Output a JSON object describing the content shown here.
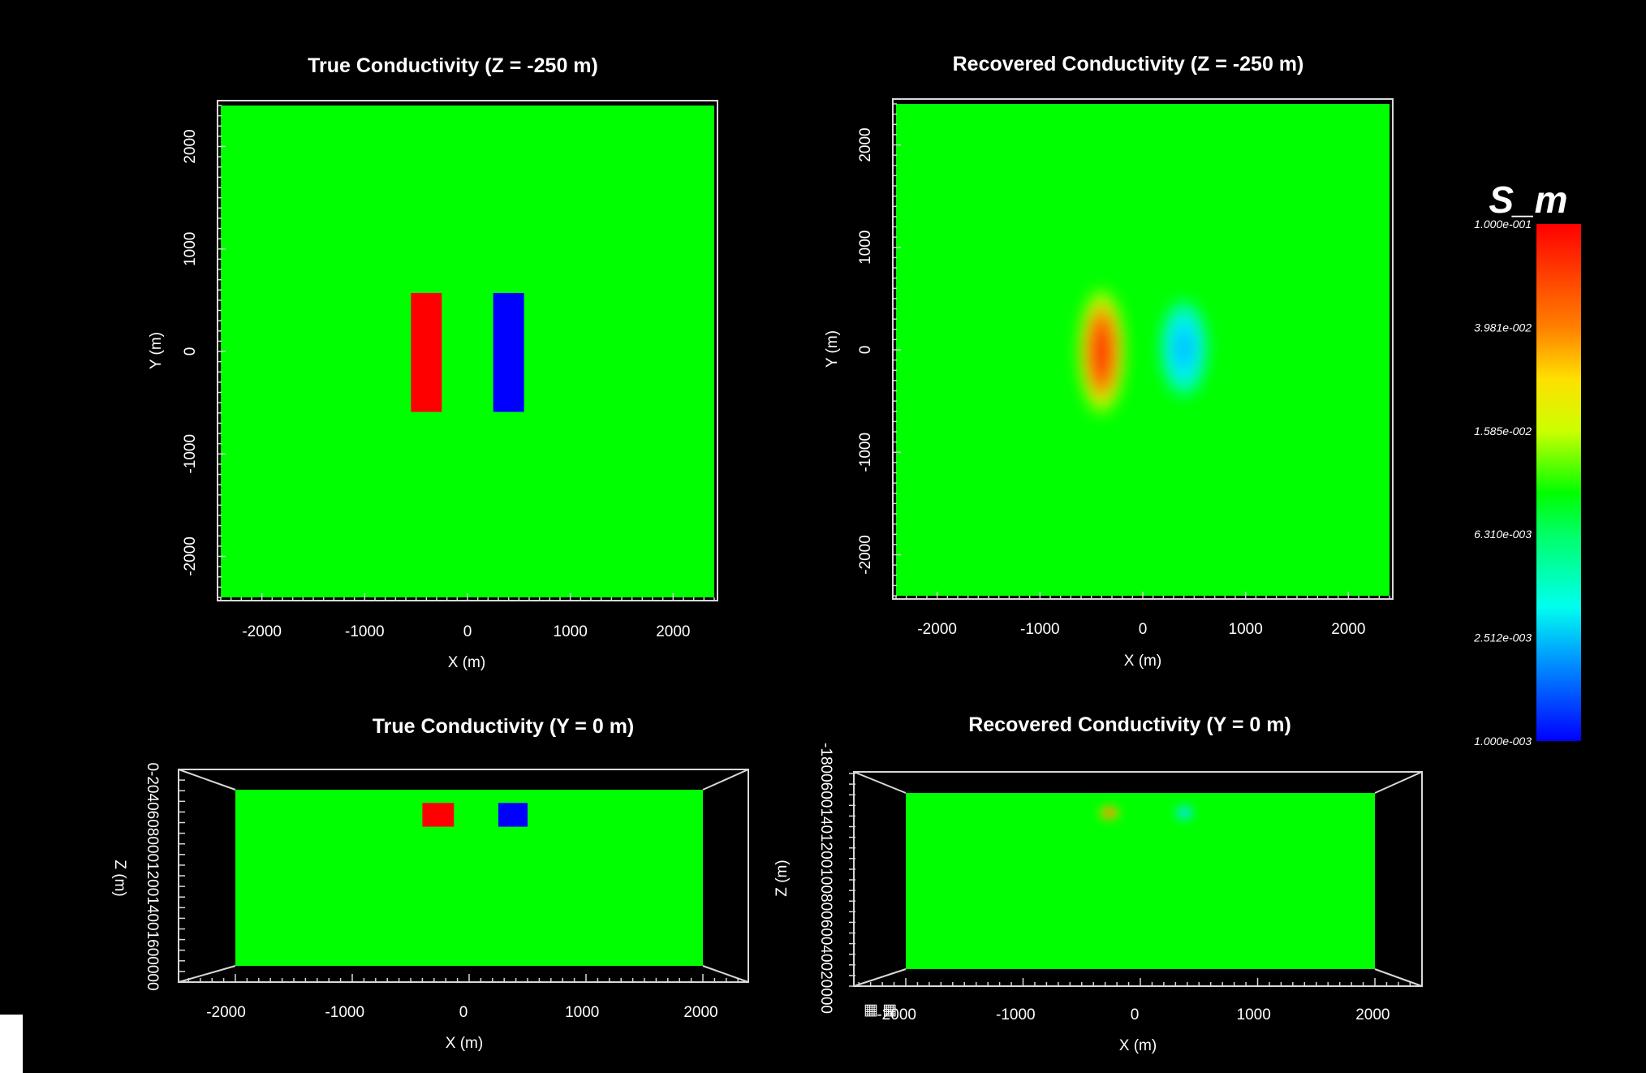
{
  "colors": {
    "background": "#000000",
    "background_model": "#00ff00",
    "conductive": "#ff0000",
    "resistive": "#0000ff",
    "recovered_conductive": "#ff3300",
    "recovered_resistive": "#00ccff",
    "text": "#ffffff"
  },
  "chart_data": [
    {
      "type": "heatmap",
      "id": "true-z",
      "title": "True Conductivity (Z = -250 m)",
      "xlabel": "X (m)",
      "ylabel": "Y (m)",
      "xlim": [
        -2400,
        2400
      ],
      "ylim": [
        -2400,
        2400
      ],
      "xticks": [
        -2000,
        -1000,
        0,
        1000,
        2000
      ],
      "yticks": [
        -2000,
        -1000,
        0,
        1000,
        2000
      ],
      "xtick_labels": [
        "-2000",
        "-1000",
        "0",
        "1000",
        "2000"
      ],
      "ytick_labels": [
        "-2000",
        "-1000",
        "0",
        "1000",
        "2000"
      ],
      "background_conductivity": 0.01,
      "bodies": [
        {
          "x": [
            -550,
            -250
          ],
          "y": [
            -590,
            570
          ],
          "conductivity": 0.1
        },
        {
          "x": [
            250,
            550
          ],
          "y": [
            -590,
            570
          ],
          "conductivity": 0.001
        }
      ]
    },
    {
      "type": "heatmap",
      "id": "recovered-z",
      "title": "Recovered Conductivity (Z = -250 m)",
      "xlabel": "X (m)",
      "ylabel": "Y (m)",
      "xlim": [
        -2400,
        2400
      ],
      "ylim": [
        -2400,
        2400
      ],
      "xticks": [
        -2000,
        -1000,
        0,
        1000,
        2000
      ],
      "yticks": [
        -2000,
        -1000,
        0,
        1000,
        2000
      ],
      "xtick_labels": [
        "-2000",
        "-1000",
        "0",
        "1000",
        "2000"
      ],
      "ytick_labels": [
        "-2000",
        "-1000",
        "0",
        "1000",
        "2000"
      ],
      "background_conductivity": 0.01,
      "bodies": [
        {
          "x": [
            -550,
            -250
          ],
          "y": [
            -600,
            560
          ],
          "conductivity": 0.06
        },
        {
          "x": [
            250,
            550
          ],
          "y": [
            -400,
            430
          ],
          "conductivity": 0.003
        }
      ]
    },
    {
      "type": "heatmap",
      "id": "true-y",
      "title": "True Conductivity (Y = 0 m)",
      "xlabel": "X (m)",
      "ylabel": "Z (m)",
      "xlim": [
        -2000,
        2000
      ],
      "zlim": [
        -2000,
        0
      ],
      "xticks": [
        -2000,
        -1000,
        0,
        1000,
        2000
      ],
      "xtick_labels": [
        "-2000",
        "-1000",
        "0",
        "1000",
        "2000"
      ],
      "ytick_text": "0-2040608000120014001600000",
      "background_conductivity": 0.01,
      "bodies": [
        {
          "x": [
            -400,
            -130
          ],
          "z": [
            -420,
            -150
          ],
          "conductivity": 0.1
        },
        {
          "x": [
            250,
            500
          ],
          "z": [
            -420,
            -150
          ],
          "conductivity": 0.001
        }
      ]
    },
    {
      "type": "heatmap",
      "id": "recovered-y",
      "title": "Recovered Conductivity (Y = 0 m)",
      "xlabel": "X (m)",
      "ylabel": "Z (m)",
      "xlim": [
        -2000,
        2000
      ],
      "zlim": [
        -2000,
        0
      ],
      "xticks": [
        -2000,
        -1000,
        0,
        1000,
        2000
      ],
      "xtick_labels": [
        "-2000",
        "-1000",
        "0",
        "1000",
        "2000"
      ],
      "ytick_text": "-1800600140120010080060040020000",
      "background_conductivity": 0.01,
      "bodies": [
        {
          "x": [
            -400,
            -130
          ],
          "z": [
            -350,
            -100
          ],
          "conductivity": 0.06
        },
        {
          "x": [
            250,
            500
          ],
          "z": [
            -350,
            -100
          ],
          "conductivity": 0.003
        }
      ]
    }
  ],
  "colorbar": {
    "title": "S_m",
    "scale": "log",
    "range": [
      0.001,
      0.1
    ],
    "tick_labels": [
      "1.000e-001",
      "3.981e-002",
      "1.585e-002",
      "6.310e-003",
      "2.512e-003",
      "1.000e-003"
    ]
  }
}
